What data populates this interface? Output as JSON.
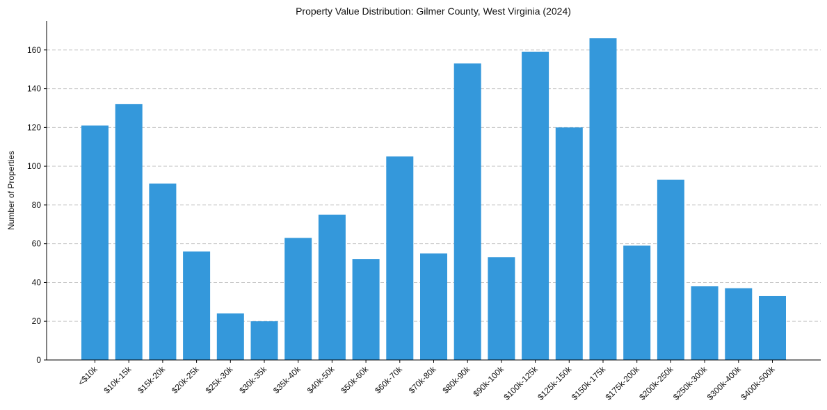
{
  "chart_data": {
    "type": "bar",
    "title": "Property Value Distribution: Gilmer County, West Virginia (2024)",
    "xlabel": "",
    "ylabel": "Number of Properties",
    "ylim": [
      0,
      175
    ],
    "yticks": [
      0,
      20,
      40,
      60,
      80,
      100,
      120,
      140,
      160
    ],
    "grid": "y-dashed",
    "bar_color": "#3498db",
    "categories": [
      "<$10k",
      "$10k-15k",
      "$15k-20k",
      "$20k-25k",
      "$25k-30k",
      "$30k-35k",
      "$35k-40k",
      "$40k-50k",
      "$50k-60k",
      "$60k-70k",
      "$70k-80k",
      "$80k-90k",
      "$90k-100k",
      "$100k-125k",
      "$125k-150k",
      "$150k-175k",
      "$175k-200k",
      "$200k-250k",
      "$250k-300k",
      "$300k-400k",
      "$400k-500k"
    ],
    "values": [
      121,
      132,
      91,
      56,
      24,
      20,
      63,
      75,
      52,
      105,
      55,
      153,
      53,
      159,
      120,
      166,
      59,
      93,
      38,
      37,
      33
    ]
  }
}
